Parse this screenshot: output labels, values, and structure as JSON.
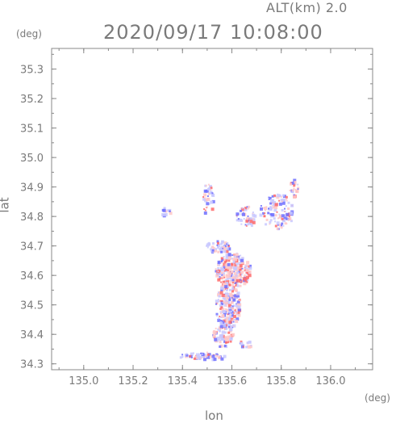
{
  "header": {
    "alt_label": "ALT(km)  2.0",
    "datetime": "2020/09/17 10:08:00"
  },
  "axes": {
    "y_unit": "(deg)",
    "x_unit": "(deg)",
    "xlabel": "lon",
    "ylabel": "lat"
  },
  "chart_data": {
    "type": "scatter",
    "title": "2020/09/17 10:08:00",
    "subtitle": "ALT(km)  2.0",
    "xlabel": "lon",
    "ylabel": "lat",
    "x_unit": "(deg)",
    "y_unit": "(deg)",
    "xlim": [
      134.87,
      136.17
    ],
    "ylim": [
      34.28,
      35.37
    ],
    "xticks": [
      135.0,
      135.2,
      135.4,
      135.6,
      135.8,
      136.0
    ],
    "xtick_labels": [
      "135.0",
      "135.2",
      "135.4",
      "135.6",
      "135.8",
      "136.0"
    ],
    "yticks": [
      34.3,
      34.4,
      34.5,
      34.6,
      34.7,
      34.8,
      34.9,
      35.0,
      35.1,
      35.2,
      35.3
    ],
    "ytick_labels": [
      "34.3",
      "34.4",
      "34.5",
      "34.6",
      "34.7",
      "34.8",
      "34.9",
      "35.0",
      "35.1",
      "35.2",
      "35.3"
    ],
    "grid": false,
    "colors": {
      "positive": "#ff6b6b",
      "negative": "#6e6eff",
      "weak_positive": "#ffc8c8",
      "weak_negative": "#c8c8ff",
      "axis": "#888888"
    },
    "echo_clusters": [
      {
        "lon": 135.6,
        "lat": 34.62,
        "r_lon": 0.07,
        "r_lat": 0.06,
        "n": 260,
        "red_bias": 0.55
      },
      {
        "lon": 135.58,
        "lat": 34.5,
        "r_lon": 0.05,
        "r_lat": 0.08,
        "n": 200,
        "red_bias": 0.45
      },
      {
        "lon": 135.56,
        "lat": 34.4,
        "r_lon": 0.04,
        "r_lat": 0.04,
        "n": 70,
        "red_bias": 0.5
      },
      {
        "lon": 135.54,
        "lat": 34.7,
        "r_lon": 0.05,
        "r_lat": 0.02,
        "n": 50,
        "red_bias": 0.35
      },
      {
        "lon": 135.78,
        "lat": 34.82,
        "r_lon": 0.07,
        "r_lat": 0.06,
        "n": 120,
        "red_bias": 0.4
      },
      {
        "lon": 135.65,
        "lat": 34.8,
        "r_lon": 0.04,
        "r_lat": 0.04,
        "n": 50,
        "red_bias": 0.3
      },
      {
        "lon": 135.5,
        "lat": 34.86,
        "r_lon": 0.02,
        "r_lat": 0.06,
        "n": 40,
        "red_bias": 0.35
      },
      {
        "lon": 135.33,
        "lat": 34.82,
        "r_lon": 0.02,
        "r_lat": 0.015,
        "n": 15,
        "red_bias": 0.1
      },
      {
        "lon": 135.48,
        "lat": 34.33,
        "r_lon": 0.1,
        "r_lat": 0.012,
        "n": 60,
        "red_bias": 0.35
      },
      {
        "lon": 135.85,
        "lat": 34.9,
        "r_lon": 0.02,
        "r_lat": 0.03,
        "n": 25,
        "red_bias": 0.45
      },
      {
        "lon": 135.65,
        "lat": 34.37,
        "r_lon": 0.04,
        "r_lat": 0.01,
        "n": 15,
        "red_bias": 0.3
      }
    ]
  }
}
